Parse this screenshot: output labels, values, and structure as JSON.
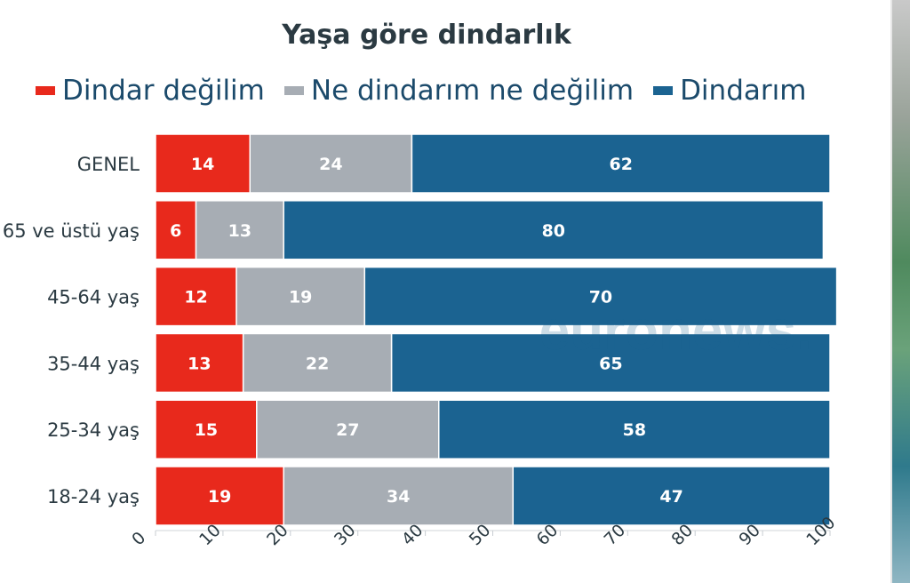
{
  "chart_data": {
    "type": "bar",
    "orientation": "horizontal",
    "stacked": true,
    "title": "Yaşa göre dindarlık",
    "categories": [
      "GENEL",
      "65 ve üstü yaş",
      "45-64 yaş",
      "35-44 yaş",
      "25-34 yaş",
      "18-24 yaş"
    ],
    "series": [
      {
        "name": "Dindar değilim",
        "color": "#e8291c",
        "values": [
          14,
          6,
          12,
          13,
          15,
          19
        ]
      },
      {
        "name": "Ne dindarım ne değilim",
        "color": "#a7adb4",
        "values": [
          24,
          13,
          19,
          22,
          27,
          34
        ]
      },
      {
        "name": "Dindarım",
        "color": "#1b6391",
        "values": [
          62,
          80,
          70,
          65,
          58,
          47
        ]
      }
    ],
    "xlim": [
      0,
      100
    ],
    "xticks": [
      "0",
      "10",
      "20",
      "30",
      "40",
      "50",
      "60",
      "70",
      "80",
      "90",
      "100"
    ],
    "legend_position": "top",
    "grid": false,
    "watermark": "euronews."
  }
}
